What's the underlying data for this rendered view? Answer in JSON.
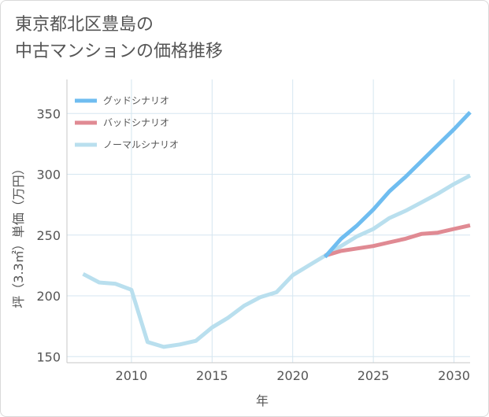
{
  "title_lines": [
    "東京都北区豊島の",
    "中古マンションの価格推移"
  ],
  "chart_data": {
    "type": "line",
    "xlabel": "年",
    "ylabel": "坪（3.3㎡）単価（万円）",
    "xlim": [
      2006,
      2031
    ],
    "ylim": [
      145,
      378
    ],
    "x_ticks": [
      2010,
      2015,
      2020,
      2025,
      2030
    ],
    "x_tick_labels": [
      "2010",
      "2015",
      "2020",
      "2025",
      "2030"
    ],
    "y_ticks": [
      150,
      200,
      250,
      300,
      350
    ],
    "y_tick_labels": [
      "150",
      "200",
      "250",
      "300",
      "350"
    ],
    "grid": true,
    "legend_position": "top-left",
    "series": [
      {
        "name": "グッドシナリオ",
        "color": "#6fbdf0",
        "x": [
          2022,
          2023,
          2024,
          2025,
          2026,
          2027,
          2028,
          2029,
          2030,
          2031
        ],
        "y": [
          232,
          247,
          258,
          271,
          286,
          298,
          311,
          324,
          337,
          351
        ]
      },
      {
        "name": "バッドシナリオ",
        "color": "#e08a93",
        "x": [
          2022,
          2023,
          2024,
          2025,
          2026,
          2027,
          2028,
          2029,
          2030,
          2031
        ],
        "y": [
          233,
          237,
          239,
          241,
          244,
          247,
          251,
          252,
          255,
          258
        ]
      },
      {
        "name": "ノーマルシナリオ",
        "color": "#b9dfee",
        "x": [
          2007,
          2008,
          2009,
          2010,
          2011,
          2012,
          2013,
          2014,
          2015,
          2016,
          2017,
          2018,
          2019,
          2020,
          2021,
          2022,
          2023,
          2024,
          2025,
          2026,
          2027,
          2028,
          2029,
          2030,
          2031
        ],
        "y": [
          218,
          211,
          210,
          205,
          162,
          158,
          160,
          163,
          174,
          182,
          192,
          199,
          203,
          217,
          225,
          233,
          241,
          249,
          255,
          264,
          270,
          277,
          284,
          292,
          299
        ]
      }
    ]
  }
}
